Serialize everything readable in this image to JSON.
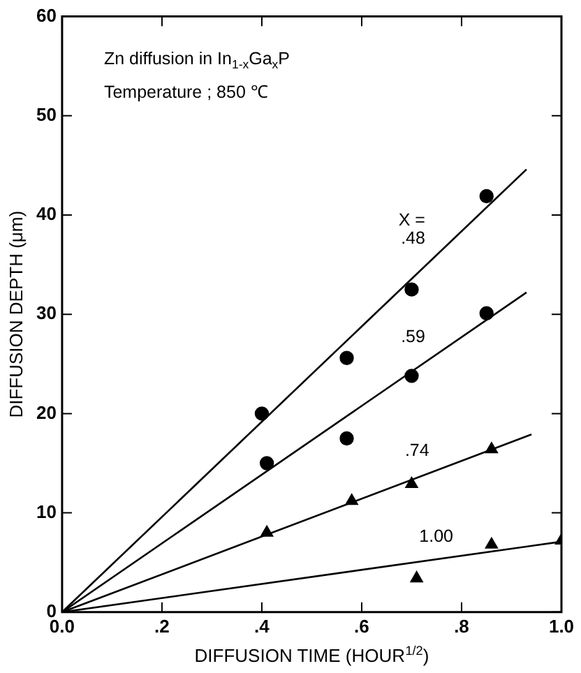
{
  "chart_data": {
    "type": "scatter",
    "xlabel": "DIFFUSION TIME (HOUR$^{1/2}$)",
    "ylabel": "DIFFUSION DEPTH (μm)",
    "xlim": [
      0,
      1.0
    ],
    "ylim": [
      0,
      60
    ],
    "xticks": [
      {
        "value": 0,
        "label": "0.0"
      },
      {
        "value": 0.2,
        "label": ".2"
      },
      {
        "value": 0.4,
        "label": ".4"
      },
      {
        "value": 0.6,
        "label": ".6"
      },
      {
        "value": 0.8,
        "label": ".8"
      },
      {
        "value": 1.0,
        "label": "1.0"
      }
    ],
    "yticks": [
      0,
      10,
      20,
      30,
      40,
      50,
      60
    ],
    "grid": false,
    "legend": false,
    "series": [
      {
        "marker": "circle",
        "color": "#000000",
        "x": [
          0.4,
          0.57,
          0.7,
          0.85
        ],
        "values": [
          20,
          25.6,
          32.5,
          41.9
        ]
      },
      {
        "marker": "circle",
        "color": "#000000",
        "x": [
          0.41,
          0.57,
          0.7,
          0.85
        ],
        "values": [
          15,
          17.5,
          23.8,
          30.1
        ]
      },
      {
        "marker": "triangle",
        "color": "#000000",
        "x": [
          0.41,
          0.58,
          0.7,
          0.86
        ],
        "values": [
          8,
          11.2,
          12.9,
          16.4
        ]
      },
      {
        "marker": "triangle",
        "color": "#000000",
        "x": [
          0.71,
          0.86,
          1.0
        ],
        "values": [
          3.4,
          6.8,
          7.2
        ]
      },
      {
        "type": "line",
        "name": "X = .48",
        "marker": "none",
        "color": "#000000",
        "x": [
          0,
          0.93
        ],
        "values": [
          0,
          44.6
        ]
      },
      {
        "type": "line",
        "name": ".59",
        "marker": "none",
        "color": "#000000",
        "x": [
          0,
          0.93
        ],
        "values": [
          0,
          32.2
        ]
      },
      {
        "type": "line",
        "name": ".74",
        "marker": "none",
        "color": "#000000",
        "x": [
          0,
          0.94
        ],
        "values": [
          0,
          17.9
        ]
      },
      {
        "type": "line",
        "name": "1.00",
        "marker": "none",
        "color": "#000000",
        "x": [
          0,
          1.0
        ],
        "values": [
          0,
          7.1
        ]
      }
    ],
    "annotations": [
      "Zn diffusion in In$_{1-x}$Ga$_{x}$P",
      "Temperature ; 850 ℃"
    ]
  }
}
